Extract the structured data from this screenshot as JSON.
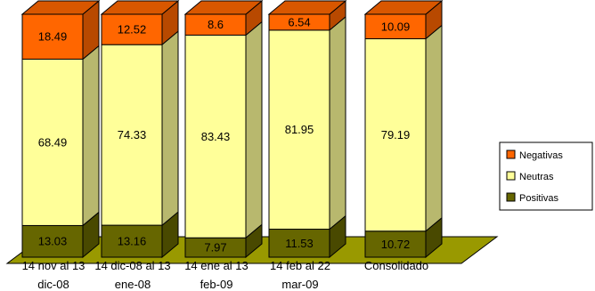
{
  "chart_data": {
    "type": "bar",
    "stacked": true,
    "percent_stacked": true,
    "three_d": true,
    "categories": [
      [
        "14 nov al 13",
        "dic-08"
      ],
      [
        "14 dic-08 al 13",
        "ene-08"
      ],
      [
        "14 ene al 13",
        "feb-09"
      ],
      [
        "14 feb al 22",
        "mar-09"
      ],
      [
        "Consolidado"
      ]
    ],
    "series": [
      {
        "name": "Positivas",
        "values": [
          13.03,
          13.16,
          7.97,
          11.53,
          10.72
        ],
        "color": "#666600"
      },
      {
        "name": "Neutras",
        "values": [
          68.49,
          74.33,
          83.43,
          81.95,
          79.19
        ],
        "color": "#FFFF99"
      },
      {
        "name": "Negativas",
        "values": [
          18.49,
          12.52,
          8.6,
          6.54,
          10.09
        ],
        "color": "#FF6600"
      }
    ],
    "legend_order": [
      "Negativas",
      "Neutras",
      "Positivas"
    ],
    "legend": "right",
    "floor_color": "#999900",
    "ylim": [
      0,
      100
    ],
    "grid": false
  }
}
